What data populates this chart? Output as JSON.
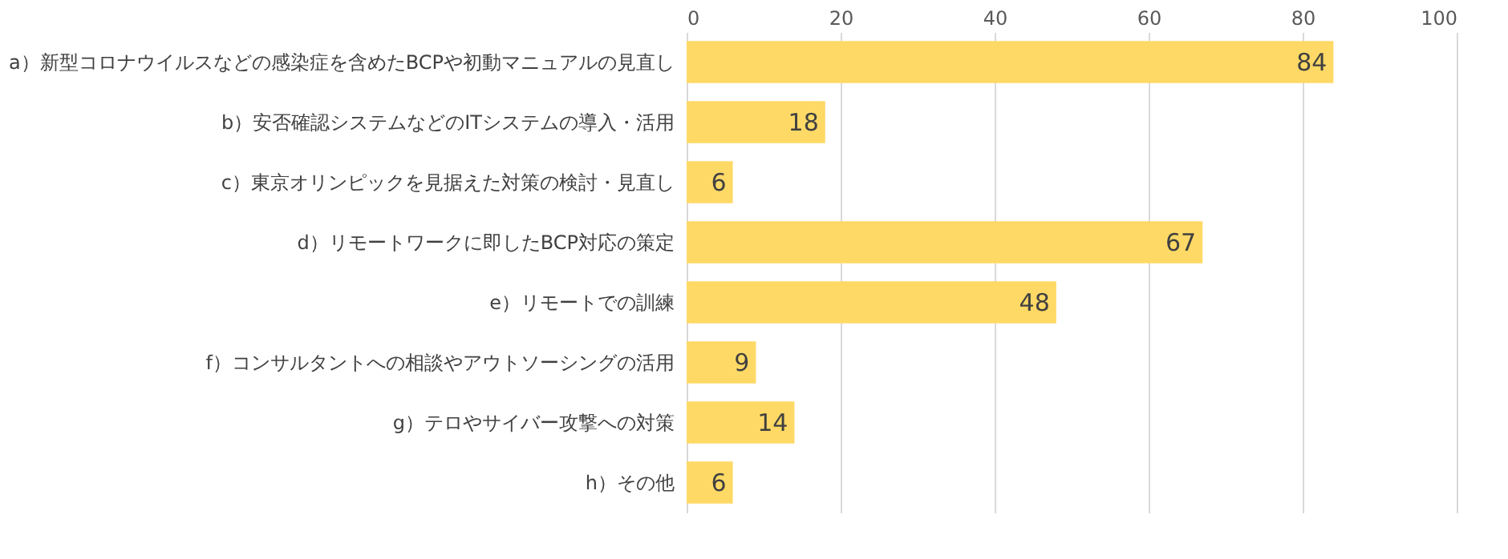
{
  "chart_data": {
    "type": "bar",
    "orientation": "horizontal",
    "categories": [
      "a）新型コロナウイルスなどの感染症を含めたBCPや初動マニュアルの見直し",
      "b）安否確認システムなどのITシステムの導入・活用",
      "c）東京オリンピックを見据えた対策の検討・見直し",
      "d）リモートワークに即したBCP対応の策定",
      "e）リモートでの訓練",
      "f）コンサルタントへの相談やアウトソーシングの活用",
      "g）テロやサイバー攻撃への対策",
      "h）その他"
    ],
    "values": [
      84,
      18,
      6,
      67,
      48,
      9,
      14,
      6
    ],
    "color": "#ffd966",
    "xlim": [
      0,
      100
    ],
    "xticks": [
      0,
      20,
      40,
      60,
      80,
      100
    ],
    "grid": "x",
    "data_labels": true
  }
}
